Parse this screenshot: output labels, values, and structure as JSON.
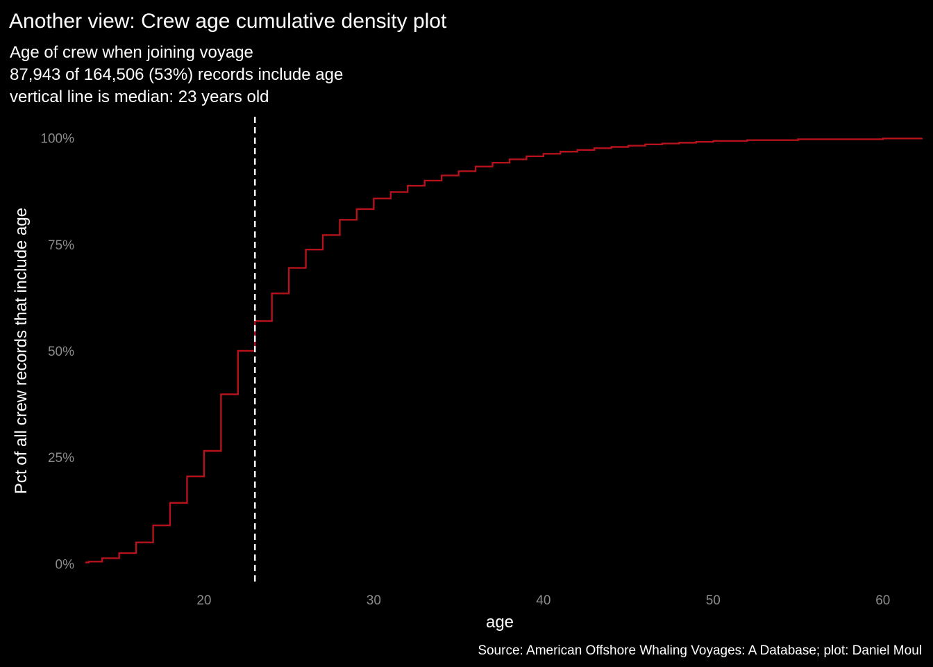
{
  "chart_data": {
    "type": "line",
    "step": true,
    "title": "Another view: Crew age cumulative density plot",
    "subtitle_lines": [
      "Age of crew when joining voyage",
      "87,943 of 164,506 (53%) records include age",
      "vertical line is median: 23 years old"
    ],
    "xlabel": "age",
    "ylabel": "Pct of all crew records that include age",
    "caption": "Source: American Offshore Whaling Voyages: A Database; plot: Daniel Moul",
    "xlim": [
      12.6,
      62.3
    ],
    "ylim": [
      -0.05,
      1.05
    ],
    "x_ticks": [
      20,
      30,
      40,
      50,
      60
    ],
    "y_ticks": [
      0,
      0.25,
      0.5,
      0.75,
      1.0
    ],
    "y_tick_labels": [
      "0%",
      "25%",
      "50%",
      "75%",
      "100%"
    ],
    "x_tick_labels": [
      "20",
      "30",
      "40",
      "50",
      "60"
    ],
    "grid": false,
    "legend": "none",
    "line_color": "#b5121b",
    "median_line_color": "#ffffff",
    "median": 23,
    "series": [
      {
        "x": [
          13,
          13.2,
          14,
          15,
          16,
          17,
          18,
          19,
          20,
          21,
          22,
          23,
          24,
          25,
          26,
          27,
          28,
          29,
          30,
          31,
          32,
          33,
          34,
          35,
          36,
          37,
          38,
          39,
          40,
          41,
          42,
          43,
          44,
          45,
          46,
          47,
          48,
          49,
          50,
          52,
          55,
          60,
          62.3
        ],
        "y": [
          0.003,
          0.005,
          0.013,
          0.025,
          0.05,
          0.09,
          0.143,
          0.205,
          0.265,
          0.398,
          0.5,
          0.57,
          0.635,
          0.695,
          0.738,
          0.772,
          0.808,
          0.833,
          0.858,
          0.873,
          0.888,
          0.9,
          0.912,
          0.922,
          0.933,
          0.942,
          0.95,
          0.957,
          0.963,
          0.968,
          0.972,
          0.976,
          0.979,
          0.982,
          0.985,
          0.987,
          0.989,
          0.991,
          0.993,
          0.995,
          0.997,
          0.999,
          1.0
        ]
      }
    ]
  }
}
